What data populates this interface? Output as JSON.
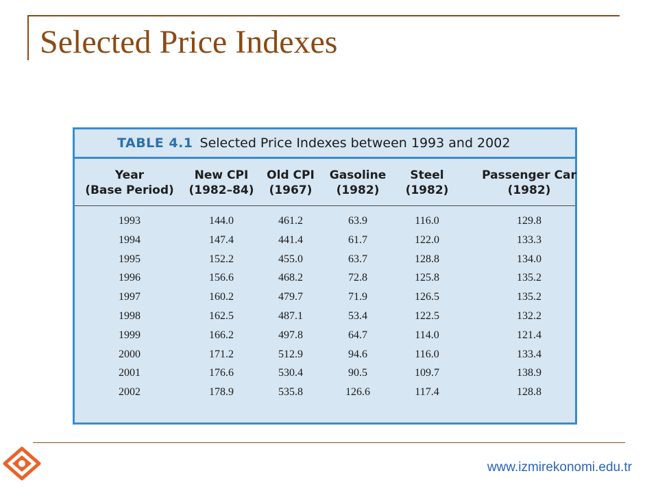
{
  "slide": {
    "title": "Selected Price Indexes",
    "footer_url": "www.izmirekonomi.edu.tr"
  },
  "table": {
    "caption_label": "TABLE 4.1",
    "caption_text": "Selected Price Indexes between 1993 and 2002",
    "headers": [
      {
        "line1": "Year",
        "line2": "(Base Period)"
      },
      {
        "line1": "New CPI",
        "line2": "(1982–84)"
      },
      {
        "line1": "Old CPI",
        "line2": "(1967)"
      },
      {
        "line1": "Gasoline",
        "line2": "(1982)"
      },
      {
        "line1": "Steel",
        "line2": "(1982)"
      },
      {
        "line1": "Passenger Car",
        "line2": "(1982)"
      }
    ],
    "rows": [
      [
        "1993",
        "144.0",
        "461.2",
        "63.9",
        "116.0",
        "129.8"
      ],
      [
        "1994",
        "147.4",
        "441.4",
        "61.7",
        "122.0",
        "133.3"
      ],
      [
        "1995",
        "152.2",
        "455.0",
        "63.7",
        "128.8",
        "134.0"
      ],
      [
        "1996",
        "156.6",
        "468.2",
        "72.8",
        "125.8",
        "135.2"
      ],
      [
        "1997",
        "160.2",
        "479.7",
        "71.9",
        "126.5",
        "135.2"
      ],
      [
        "1998",
        "162.5",
        "487.1",
        "53.4",
        "122.5",
        "132.2"
      ],
      [
        "1999",
        "166.2",
        "497.8",
        "64.7",
        "114.0",
        "121.4"
      ],
      [
        "2000",
        "171.2",
        "512.9",
        "94.6",
        "116.0",
        "133.4"
      ],
      [
        "2001",
        "176.6",
        "530.4",
        "90.5",
        "109.7",
        "138.9"
      ],
      [
        "2002",
        "178.9",
        "535.8",
        "126.6",
        "117.4",
        "128.8"
      ]
    ]
  },
  "colors": {
    "title": "#8b4a14",
    "table_background": "#d6e6f2",
    "table_border": "#3a8bd0",
    "url": "#2a63b8",
    "logo": "#e8642a"
  },
  "icons": {
    "logo": "izmir-ekonomi-logo-icon"
  }
}
